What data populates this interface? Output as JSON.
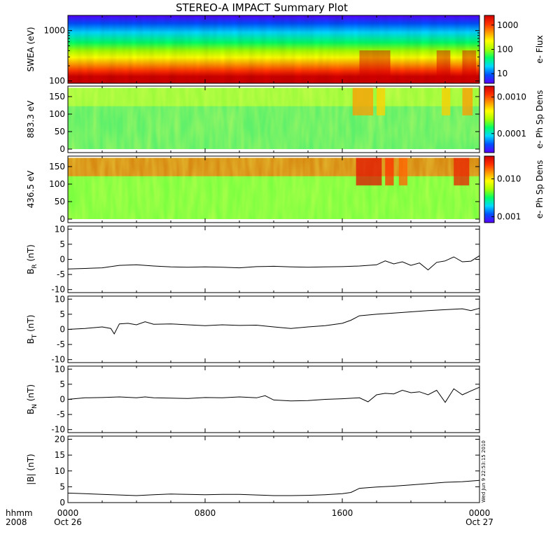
{
  "title": "STEREO-A IMPACT Summary Plot",
  "timestamp_text": "Wed Jun  9 22:53:15 2010",
  "time_axis": {
    "row_label": "hhmm",
    "year_label": "2008",
    "ticks": [
      {
        "hours": 0,
        "label": "0000",
        "date": "Oct 26"
      },
      {
        "hours": 8,
        "label": "0800",
        "date": ""
      },
      {
        "hours": 16,
        "label": "1600",
        "date": ""
      },
      {
        "hours": 24,
        "label": "0000",
        "date": "Oct 27"
      }
    ]
  },
  "colors": {
    "spectrogram_scale": [
      "#5a00ff",
      "#0050ff",
      "#00d8ff",
      "#00ff66",
      "#a6ff00",
      "#ffff00",
      "#ff9a00",
      "#ff3000",
      "#d00000"
    ],
    "trace": "#000000"
  },
  "chart_data": [
    {
      "type": "heatmap",
      "name": "swea",
      "ylabel": "SWEA (eV)",
      "yscale": "log",
      "ylim": [
        90,
        2000
      ],
      "yticks": [
        {
          "v": 100,
          "label": "100"
        },
        {
          "v": 1000,
          "label": "1000"
        }
      ],
      "colorbar": {
        "label": "e- Flux",
        "scale": "log",
        "range": [
          4,
          2500
        ],
        "ticks": [
          {
            "v": 10,
            "label": "10"
          },
          {
            "v": 100,
            "label": "100"
          },
          {
            "v": 1000,
            "label": "1000"
          }
        ]
      }
    },
    {
      "type": "heatmap",
      "name": "pad883",
      "ylabel": "883.3 eV",
      "yscale": "linear",
      "ylim": [
        -10,
        180
      ],
      "yticks": [
        {
          "v": 0,
          "label": "0"
        },
        {
          "v": 50,
          "label": "50"
        },
        {
          "v": 100,
          "label": "100"
        },
        {
          "v": 150,
          "label": "150"
        }
      ],
      "colorbar": {
        "label": "e- Ph Sp Dens",
        "scale": "log",
        "range": [
          3e-05,
          0.002
        ],
        "ticks": [
          {
            "v": 0.0001,
            "label": "0.0001"
          },
          {
            "v": 0.001,
            "label": "0.0010"
          }
        ]
      }
    },
    {
      "type": "heatmap",
      "name": "pad436",
      "ylabel": "436.5 eV",
      "yscale": "linear",
      "ylim": [
        -10,
        180
      ],
      "yticks": [
        {
          "v": 0,
          "label": "0"
        },
        {
          "v": 50,
          "label": "50"
        },
        {
          "v": 100,
          "label": "100"
        },
        {
          "v": 150,
          "label": "150"
        }
      ],
      "colorbar": {
        "label": "e- Ph Sp Dens",
        "scale": "log",
        "range": [
          0.0007,
          0.04
        ],
        "ticks": [
          {
            "v": 0.001,
            "label": "0.001"
          },
          {
            "v": 0.01,
            "label": "0.010"
          }
        ]
      }
    },
    {
      "type": "line",
      "name": "br",
      "ylabel_main": "B",
      "ylabel_sub": "R",
      "ylabel_unit": " (nT)",
      "ylim": [
        -11,
        11
      ],
      "yticks": [
        {
          "v": -10,
          "label": "-10"
        },
        {
          "v": -5,
          "label": "-5"
        },
        {
          "v": 0,
          "label": "0"
        },
        {
          "v": 5,
          "label": "5"
        },
        {
          "v": 10,
          "label": "10"
        }
      ],
      "x_hours": [
        0,
        1,
        2,
        3,
        4,
        5,
        6,
        7,
        8,
        9,
        10,
        11,
        12,
        13,
        14,
        15,
        16,
        17,
        17.5,
        18,
        18.5,
        19,
        19.5,
        20,
        20.5,
        21,
        21.5,
        22,
        22.5,
        23,
        23.5,
        24
      ],
      "y": [
        -3.2,
        -3,
        -2.8,
        -2,
        -1.8,
        -2.2,
        -2.5,
        -2.6,
        -2.5,
        -2.6,
        -2.8,
        -2.4,
        -2.3,
        -2.5,
        -2.6,
        -2.5,
        -2.4,
        -2.2,
        -2,
        -1.8,
        -0.5,
        -1.5,
        -0.8,
        -2,
        -1.2,
        -3.5,
        -1,
        -0.5,
        0.8,
        -0.8,
        -0.6,
        1.2
      ]
    },
    {
      "type": "line",
      "name": "bt",
      "ylabel_main": "B",
      "ylabel_sub": "T",
      "ylabel_unit": " (nT)",
      "ylim": [
        -11,
        11
      ],
      "yticks": [
        {
          "v": -10,
          "label": "-10"
        },
        {
          "v": -5,
          "label": "-5"
        },
        {
          "v": 0,
          "label": "0"
        },
        {
          "v": 5,
          "label": "5"
        },
        {
          "v": 10,
          "label": "10"
        }
      ],
      "x_hours": [
        0,
        1,
        2,
        2.5,
        2.7,
        3,
        3.5,
        4,
        4.5,
        5,
        6,
        7,
        8,
        9,
        10,
        11,
        12,
        13,
        14,
        15,
        16,
        16.5,
        17,
        18,
        19,
        20,
        21,
        22,
        23,
        23.5,
        24
      ],
      "y": [
        0,
        0.3,
        0.8,
        0.3,
        -1.5,
        1.8,
        2,
        1.5,
        2.5,
        1.7,
        1.8,
        1.5,
        1.2,
        1.5,
        1.3,
        1.4,
        0.8,
        0.3,
        0.8,
        1.2,
        2,
        3,
        4.5,
        5,
        5.4,
        5.8,
        6.2,
        6.5,
        6.8,
        6.2,
        7
      ]
    },
    {
      "type": "line",
      "name": "bn",
      "ylabel_main": "B",
      "ylabel_sub": "N",
      "ylabel_unit": " (nT)",
      "ylim": [
        -11,
        11
      ],
      "yticks": [
        {
          "v": -10,
          "label": "-10"
        },
        {
          "v": -5,
          "label": "-5"
        },
        {
          "v": 0,
          "label": "0"
        },
        {
          "v": 5,
          "label": "5"
        },
        {
          "v": 10,
          "label": "10"
        }
      ],
      "x_hours": [
        0,
        1,
        2,
        3,
        4,
        4.5,
        5,
        6,
        7,
        8,
        9,
        10,
        11,
        11.5,
        12,
        13,
        14,
        15,
        16,
        17,
        17.5,
        18,
        18.5,
        19,
        19.5,
        20,
        20.5,
        21,
        21.5,
        22,
        22.5,
        23,
        23.5,
        24
      ],
      "y": [
        0,
        0.5,
        0.6,
        0.8,
        0.5,
        0.8,
        0.5,
        0.4,
        0.3,
        0.6,
        0.5,
        0.8,
        0.5,
        1.2,
        -0.2,
        -0.5,
        -0.4,
        0,
        0.2,
        0.5,
        -0.8,
        1.5,
        2,
        1.8,
        3,
        2.2,
        2.5,
        1.5,
        3,
        -1,
        3.5,
        1.5,
        2.8,
        4
      ]
    },
    {
      "type": "line",
      "name": "bmag",
      "ylabel_main": "|B| (nT)",
      "ylim": [
        0,
        21
      ],
      "yticks": [
        {
          "v": 0,
          "label": "0"
        },
        {
          "v": 5,
          "label": "5"
        },
        {
          "v": 10,
          "label": "10"
        },
        {
          "v": 15,
          "label": "15"
        },
        {
          "v": 20,
          "label": "20"
        }
      ],
      "x_hours": [
        0,
        1,
        2,
        3,
        4,
        5,
        6,
        7,
        8,
        9,
        10,
        11,
        12,
        13,
        14,
        15,
        16,
        16.5,
        17,
        18,
        19,
        20,
        21,
        22,
        23,
        24
      ],
      "y": [
        3,
        2.8,
        2.6,
        2.4,
        2.2,
        2.5,
        2.7,
        2.6,
        2.5,
        2.6,
        2.6,
        2.4,
        2.2,
        2.2,
        2.3,
        2.5,
        2.8,
        3.2,
        4.5,
        4.9,
        5.2,
        5.6,
        6,
        6.4,
        6.6,
        7
      ]
    }
  ]
}
